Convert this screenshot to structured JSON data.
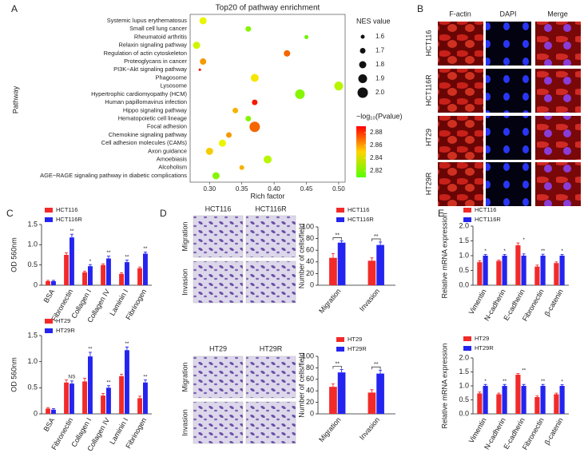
{
  "panel_labels": [
    "A",
    "B",
    "C",
    "D",
    "E"
  ],
  "panel_b": {
    "columns": [
      "F-actin",
      "DAPI",
      "Merge"
    ],
    "rows": [
      "HCT116",
      "HCT116R",
      "HT29",
      "HT29R"
    ]
  },
  "panel_d": {
    "top": {
      "columns": [
        "HCT116",
        "HCT116R"
      ],
      "rows": [
        "Migration",
        "Invasion"
      ]
    },
    "bottom": {
      "columns": [
        "HT29",
        "HT29R"
      ],
      "rows": [
        "Migration",
        "Invasion"
      ]
    }
  },
  "chart_data": [
    {
      "type": "bubble",
      "title": "Top20 of pathway enrichment",
      "x_label": "Rich factor",
      "y_label": "Pathway",
      "categories": [
        "Systemic lupus erythematosus",
        "Small cell lung cancer",
        "Rheumatoid arthritis",
        "Relaxin signaling pathway",
        "Regulation of actin cytoskeleton",
        "Proteoglycans in cancer",
        "PI3K−Akt signaling pathway",
        "Phagosome",
        "Lysosome",
        "Hypertrophic cardiomyopathy (HCM)",
        "Human papillomavirus infection",
        "Hippo signaling pathway",
        "Hematopoietic cell lineage",
        "Focal adhesion",
        "Chemokine signaling pathway",
        "Cell adhesion molecules (CAMs)",
        "Axon guidance",
        "Amoebiasis",
        "Alcoholism",
        "AGE−RAGE signaling pathway in diabetic complications"
      ],
      "x": [
        0.29,
        0.36,
        0.45,
        0.28,
        0.42,
        0.29,
        0.285,
        0.37,
        0.5,
        0.44,
        0.37,
        0.34,
        0.36,
        0.37,
        0.33,
        0.32,
        0.3,
        0.39,
        0.35,
        0.31
      ],
      "sizes": [
        1.8,
        1.7,
        1.6,
        1.8,
        1.75,
        1.75,
        1.5,
        1.85,
        1.9,
        1.95,
        1.7,
        1.7,
        1.7,
        2.0,
        1.7,
        1.8,
        1.8,
        1.85,
        1.65,
        1.8
      ],
      "color_values": [
        2.84,
        2.82,
        2.815,
        2.835,
        2.87,
        2.86,
        2.89,
        2.845,
        2.83,
        2.82,
        2.885,
        2.855,
        2.82,
        2.87,
        2.86,
        2.84,
        2.85,
        2.83,
        2.855,
        2.82
      ],
      "xlim": [
        0.27,
        0.51
      ],
      "xticks": [
        {
          "value": 0.3,
          "label": "0.30"
        },
        0.35,
        {
          "value": 0.4,
          "label": "0.40"
        },
        0.45,
        {
          "value": 0.5,
          "label": "0.50"
        }
      ],
      "size_legend": {
        "title": "NES value",
        "values": [
          1.6,
          1.7,
          1.8,
          1.9,
          {
            "value": 2,
            "label": "2.0"
          }
        ]
      },
      "color_legend": {
        "title": "−log₁₀(Pvalue)",
        "lim": [
          2.81,
          2.89
        ],
        "ticks": [
          2.82,
          2.84,
          2.86,
          2.88
        ]
      }
    },
    {
      "type": "grouped_bar",
      "y_label": "OD 560nm",
      "categories": [
        "BSA",
        "Fibronectin",
        "Collagen I",
        "Collagen IV",
        "Laminin I",
        "Fibrinogen"
      ],
      "series": [
        {
          "name": "HCT116",
          "color": "#f22a2a",
          "values": [
            0.1,
            0.75,
            0.32,
            0.5,
            0.28,
            0.42
          ],
          "errors": [
            0.02,
            0.05,
            0.03,
            0.03,
            0.03,
            0.03
          ]
        },
        {
          "name": "HCT116R",
          "color": "#2424f0",
          "values": [
            0.1,
            1.18,
            0.47,
            0.66,
            0.57,
            0.78
          ],
          "errors": [
            0.02,
            0.08,
            0.04,
            0.06,
            0.05,
            0.04
          ]
        }
      ],
      "significance": [
        null,
        "**",
        "*",
        "**",
        "**",
        "**"
      ],
      "ylim": [
        0,
        1.5
      ],
      "yticks": [
        0,
        0.5,
        {
          "value": 1,
          "label": "1.0"
        },
        1.5
      ]
    },
    {
      "type": "grouped_bar",
      "y_label": "OD 560nm",
      "categories": [
        "BSA",
        "Fibronectin",
        "Collagen I",
        "Collagen IV",
        "Laminin I",
        "Fibrinogen"
      ],
      "series": [
        {
          "name": "HT29",
          "color": "#f22a2a",
          "values": [
            0.1,
            0.6,
            0.62,
            0.35,
            0.72,
            0.3
          ],
          "errors": [
            0.02,
            0.05,
            0.06,
            0.04,
            0.04,
            0.04
          ]
        },
        {
          "name": "HT29R",
          "color": "#2424f0",
          "values": [
            0.08,
            0.58,
            1.1,
            0.5,
            1.22,
            0.6
          ],
          "errors": [
            0.02,
            0.05,
            0.08,
            0.04,
            0.06,
            0.05
          ]
        }
      ],
      "significance": [
        null,
        "NS",
        "**",
        "**",
        "**",
        "**"
      ],
      "ylim": [
        0,
        1.5
      ],
      "yticks": [
        0,
        0.5,
        {
          "value": 1,
          "label": "1.0"
        },
        1.5
      ]
    },
    {
      "type": "grouped_bar",
      "y_label": "Number of cells/field",
      "categories": [
        "Migration",
        "Invasion"
      ],
      "series": [
        {
          "name": "HCT116",
          "color": "#f22a2a",
          "values": [
            47,
            42
          ],
          "errors": [
            7,
            5
          ]
        },
        {
          "name": "HCT116R",
          "color": "#2424f0",
          "values": [
            73,
            69
          ],
          "errors": [
            3,
            5
          ]
        }
      ],
      "significance": [
        "**",
        "**"
      ],
      "ylim": [
        0,
        100
      ],
      "yticks": [
        0,
        20,
        40,
        60,
        80,
        100
      ]
    },
    {
      "type": "grouped_bar",
      "y_label": "Number of cells/field",
      "categories": [
        "Migration",
        "Invasion"
      ],
      "series": [
        {
          "name": "HT29",
          "color": "#f22a2a",
          "values": [
            47,
            37
          ],
          "errors": [
            5,
            5
          ]
        },
        {
          "name": "HT29R",
          "color": "#2424f0",
          "values": [
            72,
            70
          ],
          "errors": [
            5,
            6
          ]
        }
      ],
      "significance": [
        "**",
        "**"
      ],
      "ylim": [
        0,
        100
      ],
      "yticks": [
        0,
        20,
        40,
        60,
        80,
        100
      ]
    },
    {
      "type": "grouped_bar",
      "y_label": "Relative mRNA expression",
      "categories": [
        "Vimentin",
        "N-cadherin",
        "E-cadherin",
        "Fibronectin",
        "β-catenin"
      ],
      "series": [
        {
          "name": "HCT116",
          "color": "#f22a2a",
          "values": [
            0.78,
            0.82,
            1.35,
            0.63,
            0.75
          ],
          "errors": [
            0.05,
            0.03,
            0.08,
            0.05,
            0.04
          ]
        },
        {
          "name": "HCT116R",
          "color": "#2424f0",
          "values": [
            1,
            1,
            1,
            1,
            1
          ],
          "errors": [
            0.04,
            0.04,
            0.06,
            0.05,
            0.04
          ]
        }
      ],
      "significance": [
        "*",
        "*",
        "*",
        "**",
        "*"
      ],
      "ylim": [
        0,
        2
      ],
      "yticks": [
        {
          "value": 0,
          "label": "0.0"
        },
        0.5,
        {
          "value": 1,
          "label": "1.0"
        },
        1.5,
        {
          "value": 2,
          "label": "2.0"
        }
      ]
    },
    {
      "type": "grouped_bar",
      "y_label": "Relative mRNA expression",
      "categories": [
        "Vimentin",
        "N-cadherin",
        "E-cadherin",
        "Fibronectin",
        "β-catenin"
      ],
      "series": [
        {
          "name": "HT29",
          "color": "#f22a2a",
          "values": [
            0.73,
            0.7,
            1.4,
            0.6,
            0.7
          ],
          "errors": [
            0.05,
            0.04,
            0.04,
            0.04,
            0.04
          ]
        },
        {
          "name": "HT29R",
          "color": "#2424f0",
          "values": [
            1,
            1,
            1,
            1,
            1
          ],
          "errors": [
            0.05,
            0.05,
            0.05,
            0.05,
            0.04
          ]
        }
      ],
      "significance": [
        "*",
        "**",
        "**",
        "**",
        "*"
      ],
      "ylim": [
        0,
        2
      ],
      "yticks": [
        {
          "value": 0,
          "label": "0.0"
        },
        0.5,
        {
          "value": 1,
          "label": "1.0"
        },
        1.5,
        {
          "value": 2,
          "label": "2.0"
        }
      ]
    }
  ]
}
